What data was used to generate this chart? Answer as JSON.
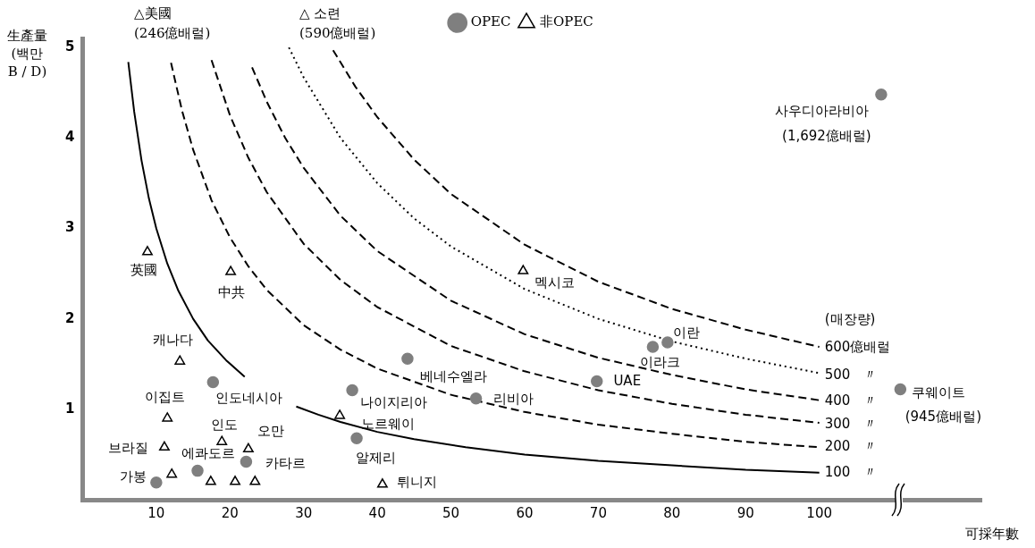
{
  "chart_data": {
    "type": "scatter",
    "xlabel": "可採年數",
    "ylabel": "生產量\n(백만\nB / D)",
    "xlim": [
      0,
      122
    ],
    "xticks": [
      10,
      20,
      30,
      40,
      50,
      60,
      70,
      80,
      90,
      100
    ],
    "ylim": [
      0,
      5.1
    ],
    "yticks": [
      1,
      2,
      3,
      4,
      5
    ],
    "grid": false,
    "legend": "top",
    "series": [
      {
        "name": "OPEC",
        "type": "scatter",
        "color": "#7f7f7f",
        "marker": "circle",
        "x": [
          108.4,
          111.0,
          79.4,
          77.4,
          69.8,
          53.4,
          44.1,
          36.6,
          37.2,
          17.7,
          15.6,
          22.2,
          10.0
        ],
        "values": [
          4.48,
          1.22,
          1.74,
          1.69,
          1.31,
          1.12,
          1.56,
          1.21,
          0.68,
          1.3,
          0.32,
          0.42,
          0.19
        ]
      },
      {
        "name": "非OPEC",
        "type": "scatter",
        "color": "#000000",
        "marker": "triangle",
        "x": [
          8.8,
          20.1,
          59.8,
          13.2,
          11.5,
          18.9,
          22.5,
          34.9,
          11.1,
          40.7,
          12.1,
          17.4,
          20.7,
          23.4
        ],
        "values": [
          2.74,
          2.52,
          2.53,
          1.53,
          0.9,
          0.64,
          0.56,
          0.93,
          0.58,
          0.17,
          0.28,
          0.2,
          0.2,
          0.2
        ]
      },
      {
        "type": "line",
        "color": "#000000",
        "marker": "none",
        "line_style": "solid",
        "x": [
          6.2,
          7,
          8,
          9,
          10,
          11.5,
          13,
          15,
          17,
          19.5,
          22,
          25,
          29,
          32,
          35,
          40,
          45,
          52,
          60,
          70,
          80,
          90,
          100
        ],
        "values": [
          4.84,
          4.29,
          3.75,
          3.33,
          3.0,
          2.61,
          2.31,
          2.0,
          1.76,
          1.54,
          1.36,
          null,
          1.03,
          0.94,
          0.86,
          0.75,
          0.67,
          0.58,
          0.5,
          0.43,
          0.38,
          0.33,
          0.3
        ]
      },
      {
        "type": "line",
        "color": "#000000",
        "marker": "none",
        "line_style": "dashed",
        "x": [
          12,
          13.5,
          15,
          17.5,
          20,
          22.5,
          25,
          30,
          35,
          40,
          50,
          60,
          70,
          80,
          90,
          100
        ],
        "values": [
          4.83,
          4.3,
          3.87,
          3.31,
          2.9,
          2.58,
          2.32,
          1.93,
          1.66,
          1.45,
          1.16,
          0.97,
          0.83,
          0.73,
          0.64,
          0.58
        ]
      },
      {
        "type": "line",
        "color": "#000000",
        "marker": "none",
        "line_style": "dashed",
        "x": [
          17.5,
          20,
          22.5,
          25,
          30,
          35,
          40,
          50,
          60,
          70,
          80,
          90,
          100
        ],
        "values": [
          4.86,
          4.25,
          3.78,
          3.4,
          2.83,
          2.43,
          2.13,
          1.7,
          1.42,
          1.21,
          1.06,
          0.94,
          0.85
        ]
      },
      {
        "type": "line",
        "color": "#000000",
        "marker": "none",
        "line_style": "dashed",
        "x": [
          23,
          25,
          27.5,
          30,
          35,
          40,
          50,
          60,
          70,
          80,
          90,
          100
        ],
        "values": [
          4.78,
          4.4,
          4.0,
          3.67,
          3.14,
          2.75,
          2.2,
          1.83,
          1.57,
          1.38,
          1.22,
          1.1
        ]
      },
      {
        "type": "line",
        "color": "#000000",
        "marker": "none",
        "line_style": "dotted",
        "x": [
          28,
          30,
          35,
          40,
          45,
          50,
          60,
          70,
          80,
          90,
          100
        ],
        "values": [
          5.0,
          4.67,
          4.0,
          3.5,
          3.11,
          2.8,
          2.33,
          2.0,
          1.75,
          1.56,
          1.4
        ]
      },
      {
        "type": "line",
        "color": "#000000",
        "marker": "none",
        "line_style": "dashed",
        "x": [
          34,
          37,
          40,
          45,
          50,
          60,
          70,
          80,
          90,
          100
        ],
        "values": [
          4.97,
          4.57,
          4.23,
          3.76,
          3.38,
          2.82,
          2.41,
          2.11,
          1.88,
          1.69
        ]
      }
    ],
    "annotations": [
      "△美國",
      "(246億배럴)",
      "△ 소련",
      "(590億배럴)",
      {
        "text": "사우디아라비아",
        "x": 108.4,
        "y": 4.48
      },
      {
        "text": "(1,692億배럴)",
        "x": 108.4,
        "y": 4.48
      },
      {
        "text": "쿠웨이트",
        "x": 111.0,
        "y": 1.22
      },
      {
        "text": "(945億배럴)",
        "x": 111.0,
        "y": 1.22
      },
      {
        "text": "이란",
        "x": 79.4,
        "y": 1.74
      },
      {
        "text": "이라크",
        "x": 77.4,
        "y": 1.69
      },
      {
        "text": "UAE",
        "x": 69.8,
        "y": 1.31
      },
      {
        "text": "리비아",
        "x": 53.4,
        "y": 1.12
      },
      {
        "text": "베네수엘라",
        "x": 44.1,
        "y": 1.56
      },
      {
        "text": "멕시코",
        "x": 59.8,
        "y": 2.53
      },
      {
        "text": "나이지리아",
        "x": 36.6,
        "y": 1.21
      },
      {
        "text": "노르웨이",
        "x": 34.9,
        "y": 0.93
      },
      {
        "text": "알제리",
        "x": 37.2,
        "y": 0.68
      },
      {
        "text": "튀니지",
        "x": 40.7,
        "y": 0.17
      },
      {
        "text": "인도네시아",
        "x": 17.7,
        "y": 1.3
      },
      {
        "text": "이집트",
        "x": 11.5,
        "y": 0.9
      },
      {
        "text": "인도",
        "x": 18.9,
        "y": 0.64
      },
      {
        "text": "오만",
        "x": 22.5,
        "y": 0.56
      },
      {
        "text": "브라질",
        "x": 11.1,
        "y": 0.58
      },
      {
        "text": "에콰도르",
        "x": 15.6,
        "y": 0.32
      },
      {
        "text": "카타르",
        "x": 22.2,
        "y": 0.42
      },
      {
        "text": "가봉",
        "x": 10.0,
        "y": 0.19
      },
      {
        "text": "캐나다",
        "x": 13.2,
        "y": 1.53
      },
      {
        "text": "英國",
        "x": 8.8,
        "y": 2.74
      },
      {
        "text": "中共",
        "x": 20.1,
        "y": 2.52
      },
      {
        "text": "(매장량)",
        "x": 100,
        "y": 1.69
      },
      {
        "text": "600億배럴",
        "x": 100,
        "y": 1.69
      },
      {
        "text": "500   〃",
        "x": 100,
        "y": 1.4
      },
      {
        "text": "400   〃",
        "x": 100,
        "y": 1.1
      },
      {
        "text": "300   〃",
        "x": 100,
        "y": 0.85
      },
      {
        "text": "200   〃",
        "x": 100,
        "y": 0.58
      },
      {
        "text": "100   〃",
        "x": 100,
        "y": 0.3
      }
    ]
  }
}
